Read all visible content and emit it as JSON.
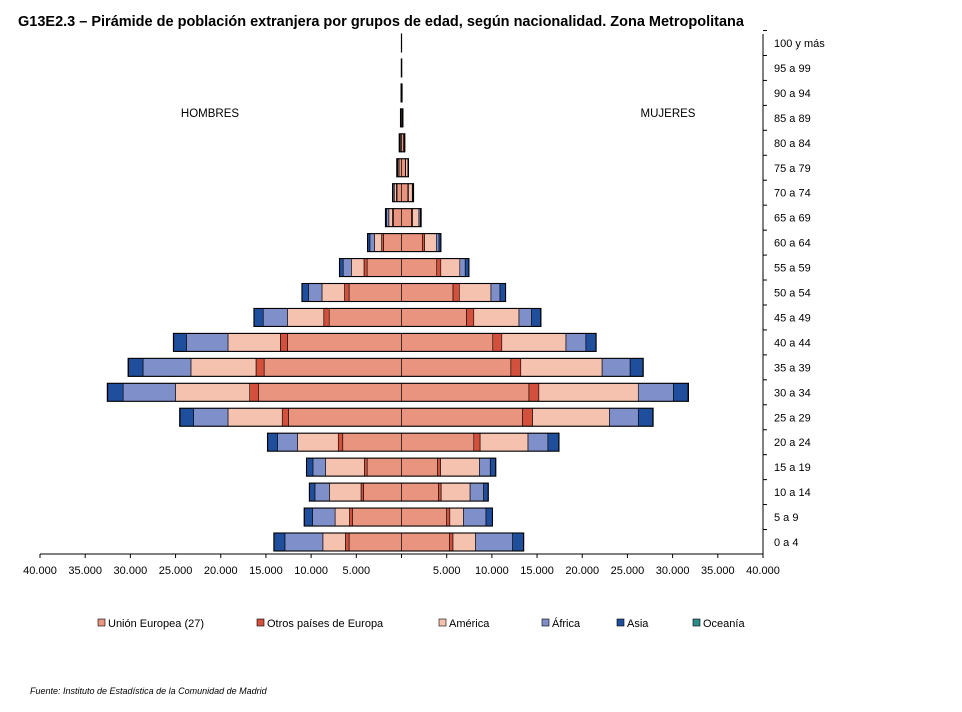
{
  "chart_data": {
    "type": "bar",
    "orientation": "horizontal-population-pyramid",
    "title": "G13E2.3 – Pirámide de población extranjera por grupos de edad, según nacionalidad. Zona Metropolitana",
    "left_label": "HOMBRES",
    "right_label": "MUJERES",
    "categories": [
      "0 a 4",
      "5 a 9",
      "10 a 14",
      "15 a 19",
      "20 a 24",
      "25 a 29",
      "30 a 34",
      "35 a 39",
      "40 a 44",
      "45 a 49",
      "50 a 54",
      "55 a 59",
      "60 a 64",
      "65 a 69",
      "70 a 74",
      "75 a 79",
      "80 a 84",
      "85 a 89",
      "90 a 94",
      "95 a 99",
      "100 y más"
    ],
    "x_tick_labels": [
      "40.000",
      "35.000",
      "30.000",
      "25.000",
      "20.000",
      "15.000",
      "10.000",
      "5.000",
      "",
      "5.000",
      "10.000",
      "15.000",
      "20.000",
      "25.000",
      "30.000",
      "35.000",
      "40.000"
    ],
    "xlim": [
      -40000,
      40000
    ],
    "grid": false,
    "legend_position": "bottom",
    "series": [
      {
        "name": "Unión Europea (27)",
        "color": "#E8947F",
        "men": [
          5800,
          5400,
          4200,
          3800,
          6500,
          12500,
          15800,
          15200,
          12600,
          8000,
          5800,
          3800,
          2000,
          900,
          500,
          280,
          130,
          60,
          25,
          10,
          4
        ],
        "women": [
          5300,
          5000,
          4100,
          4000,
          8000,
          13400,
          14100,
          12100,
          10100,
          7200,
          5700,
          3900,
          2300,
          1100,
          700,
          420,
          200,
          90,
          35,
          14,
          5
        ]
      },
      {
        "name": "Otros países de Europa",
        "color": "#D2503C",
        "men": [
          400,
          350,
          280,
          300,
          500,
          700,
          1000,
          900,
          800,
          600,
          500,
          350,
          200,
          100,
          60,
          30,
          15,
          6,
          2,
          1,
          0
        ],
        "women": [
          400,
          350,
          290,
          320,
          700,
          1100,
          1100,
          1100,
          1000,
          800,
          700,
          450,
          250,
          120,
          70,
          40,
          20,
          8,
          3,
          1,
          0
        ]
      },
      {
        "name": "América",
        "color": "#F5C2B0",
        "men": [
          2500,
          1600,
          3500,
          4300,
          4500,
          6000,
          8200,
          7200,
          5800,
          4000,
          2500,
          1400,
          800,
          400,
          240,
          120,
          60,
          25,
          10,
          4,
          1
        ],
        "women": [
          2500,
          1500,
          3200,
          4300,
          5300,
          8500,
          11000,
          9000,
          7100,
          5000,
          3500,
          2100,
          1300,
          700,
          420,
          240,
          110,
          45,
          18,
          7,
          2
        ]
      },
      {
        "name": "África",
        "color": "#7F8FC9",
        "men": [
          4200,
          2500,
          1600,
          1400,
          2200,
          3800,
          5800,
          5300,
          4600,
          2700,
          1500,
          900,
          500,
          250,
          120,
          60,
          30,
          12,
          5,
          2,
          0
        ],
        "women": [
          4100,
          2500,
          1500,
          1200,
          2200,
          3200,
          3900,
          3100,
          2200,
          1400,
          1000,
          600,
          300,
          150,
          80,
          40,
          20,
          8,
          3,
          1,
          0
        ]
      },
      {
        "name": "Asia",
        "color": "#1F4E9C",
        "men": [
          1200,
          900,
          600,
          700,
          1100,
          1500,
          1700,
          1600,
          1400,
          1000,
          700,
          400,
          250,
          120,
          60,
          30,
          15,
          6,
          3,
          1,
          0
        ],
        "women": [
          1200,
          700,
          500,
          600,
          1200,
          1600,
          1600,
          1400,
          1100,
          1000,
          600,
          400,
          200,
          100,
          60,
          30,
          15,
          6,
          3,
          1,
          0
        ]
      },
      {
        "name": "Oceanía",
        "color": "#2E8B8B",
        "men": [
          20,
          15,
          12,
          10,
          25,
          40,
          50,
          45,
          35,
          25,
          15,
          10,
          6,
          3,
          2,
          1,
          0,
          0,
          0,
          0,
          0
        ],
        "women": [
          20,
          15,
          12,
          10,
          25,
          40,
          50,
          45,
          35,
          25,
          15,
          10,
          6,
          3,
          2,
          1,
          0,
          0,
          0,
          0,
          0
        ]
      }
    ]
  },
  "source": "Fuente: Instituto de Estadística de la Comunidad de Madrid"
}
